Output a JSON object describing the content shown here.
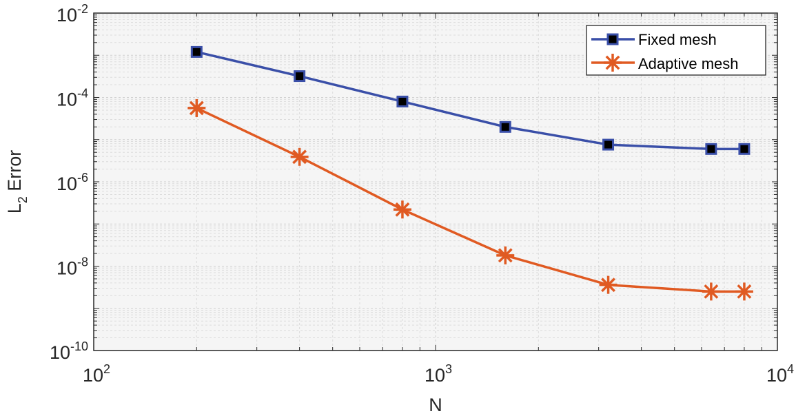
{
  "chart_data": {
    "type": "line",
    "title": "",
    "xlabel": "N",
    "ylabel": "L",
    "ylabel_subscript": "2",
    "ylabel_suffix": " Error",
    "xscale": "log",
    "yscale": "log",
    "xlim": [
      100,
      10000
    ],
    "ylim": [
      1e-10,
      0.01
    ],
    "grid": true,
    "minor_grid": true,
    "legend_position": "top-right",
    "x_ticks": [
      {
        "base": "10",
        "exp": "2",
        "value": 100
      },
      {
        "base": "10",
        "exp": "3",
        "value": 1000
      },
      {
        "base": "10",
        "exp": "4",
        "value": 10000
      }
    ],
    "y_ticks": [
      {
        "base": "10",
        "exp": "-2",
        "value": 0.01
      },
      {
        "base": "10",
        "exp": "-4",
        "value": 0.0001
      },
      {
        "base": "10",
        "exp": "-6",
        "value": 1e-06
      },
      {
        "base": "10",
        "exp": "-8",
        "value": 1e-08
      },
      {
        "base": "10",
        "exp": "-10",
        "value": 1e-10
      }
    ],
    "x": [
      200,
      400,
      800,
      1600,
      3200,
      6400,
      8000
    ],
    "series": [
      {
        "name": "Fixed mesh",
        "color": "#3a4fa8",
        "marker": "square",
        "values": [
          0.0012,
          0.00032,
          8e-05,
          2e-05,
          7.6e-06,
          6e-06,
          6e-06
        ]
      },
      {
        "name": "Adaptive mesh",
        "color": "#e05a22",
        "marker": "asterisk",
        "values": [
          5.6e-05,
          3.9e-06,
          2.2e-07,
          1.8e-08,
          3.6e-09,
          2.5e-09,
          2.5e-09
        ]
      }
    ]
  }
}
